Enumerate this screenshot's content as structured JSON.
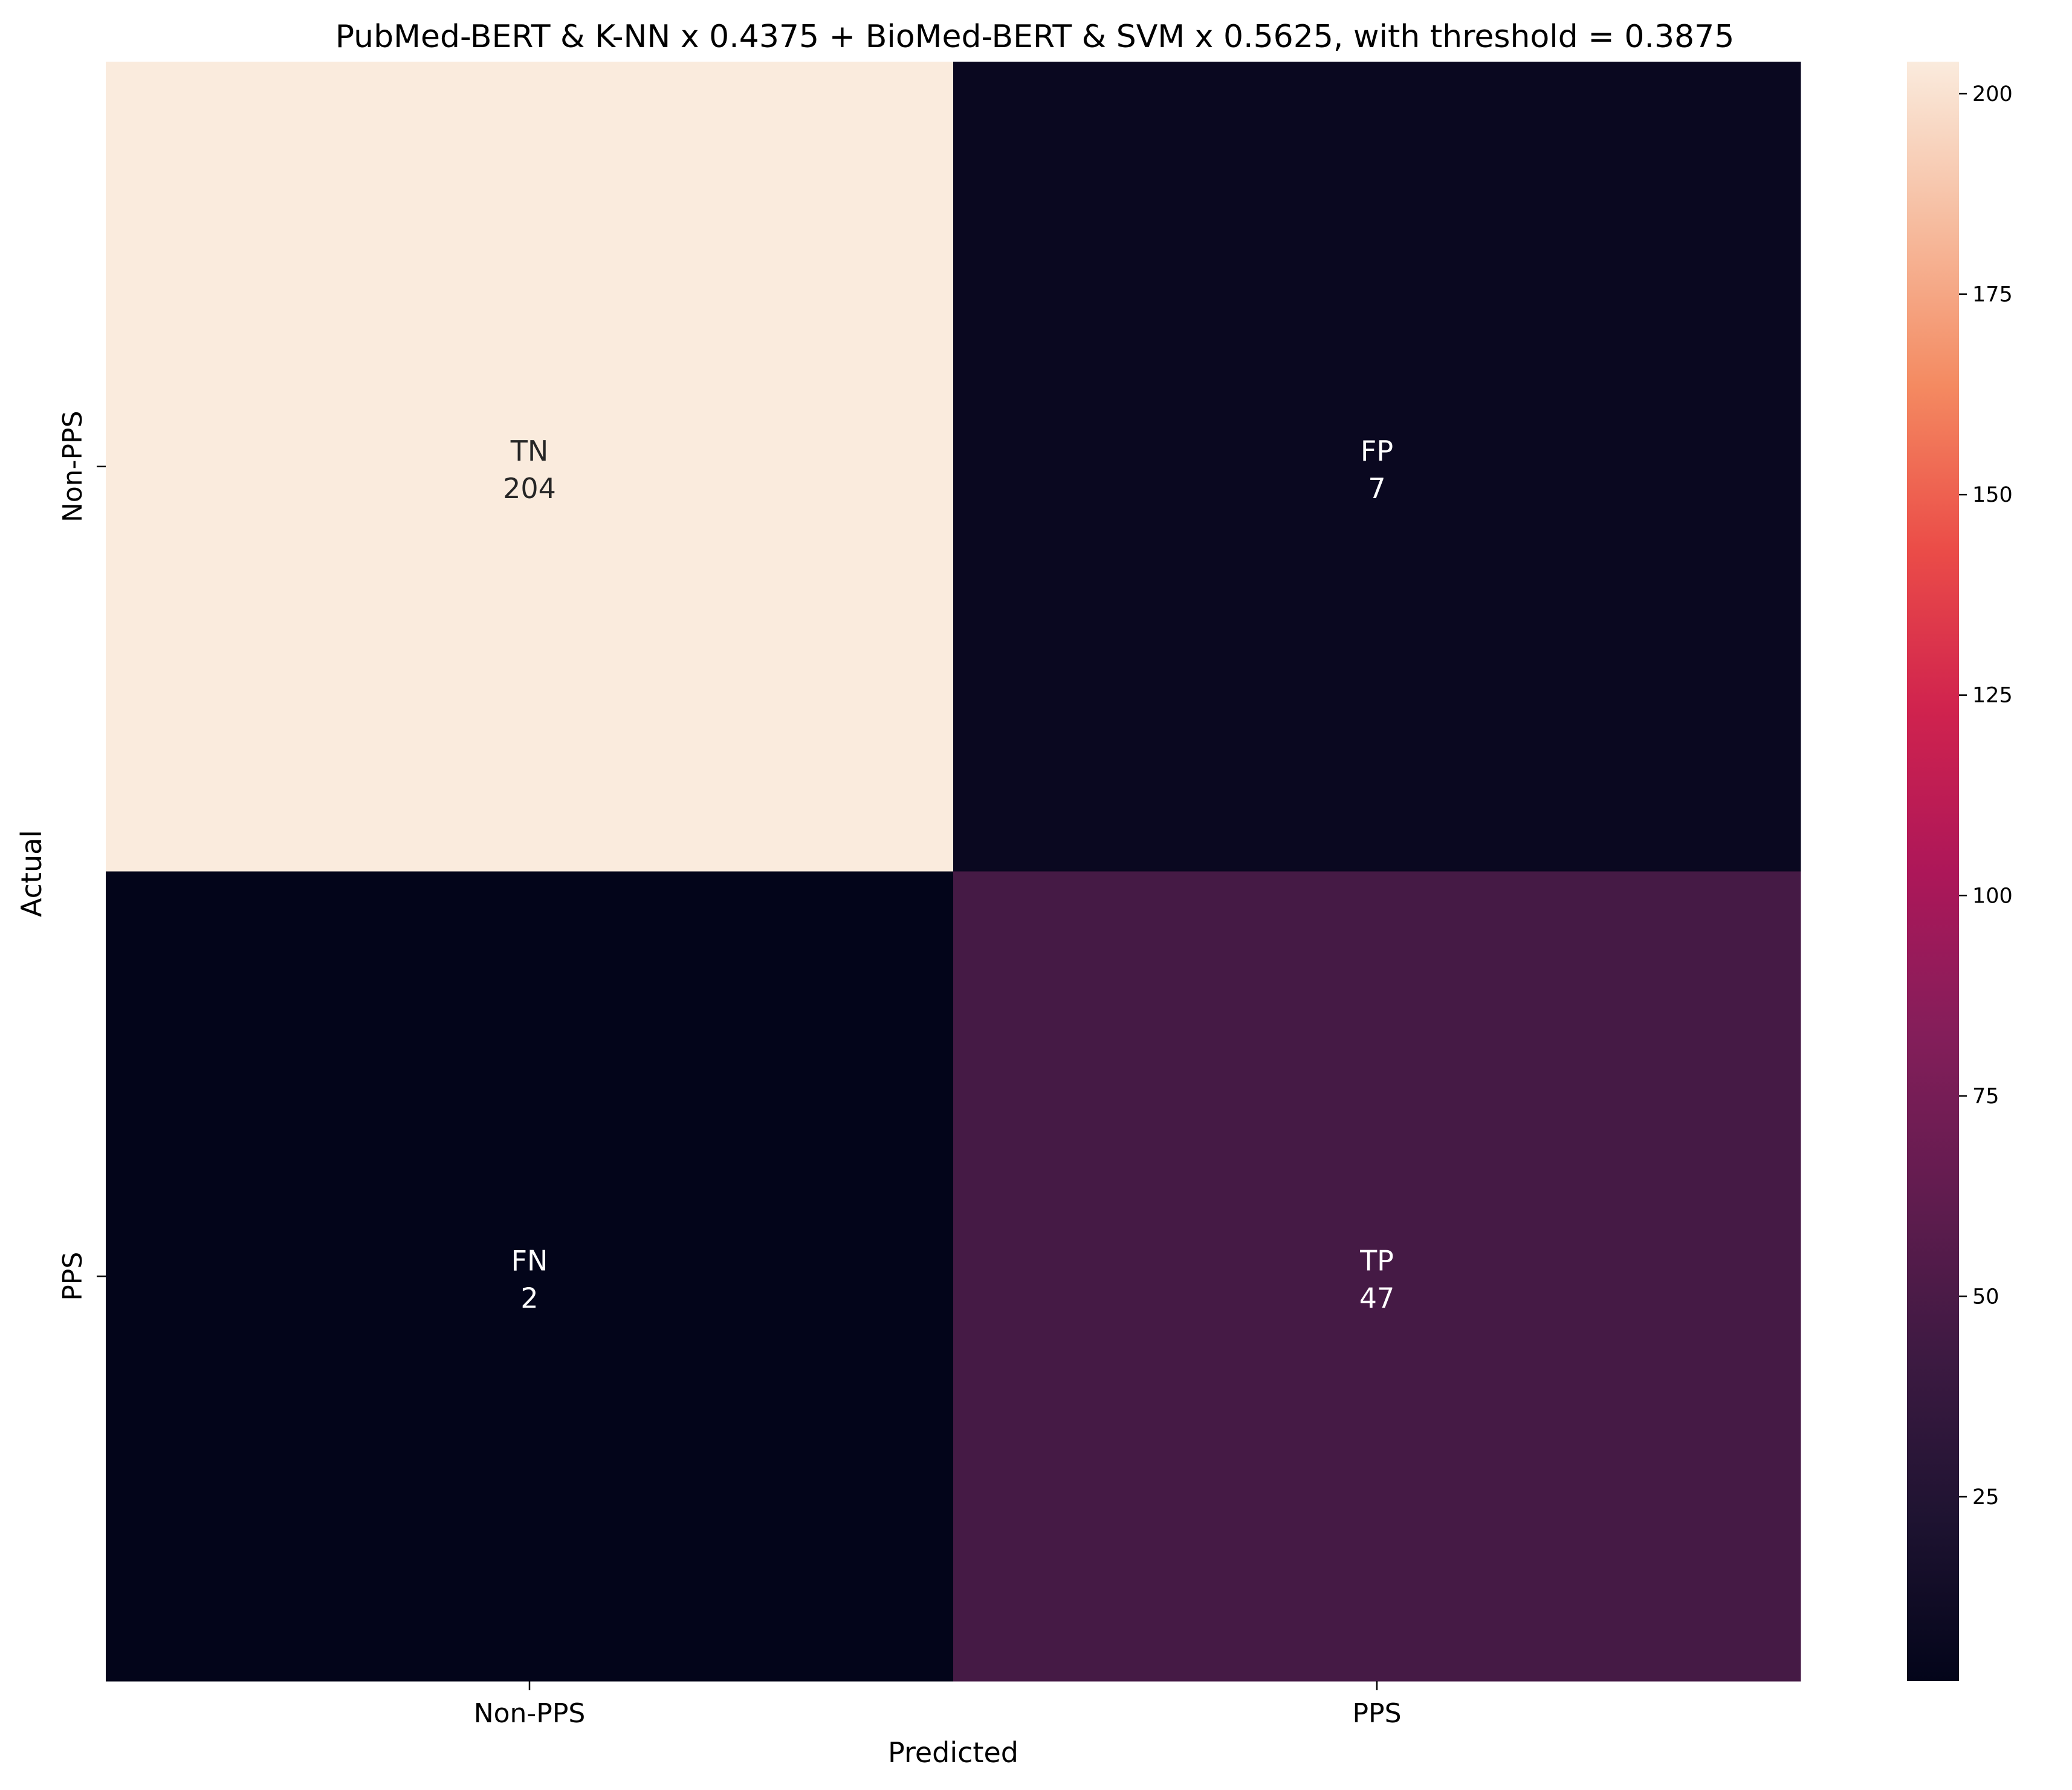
{
  "chart_data": {
    "type": "heatmap",
    "title": "PubMed-BERT & K-NN x 0.4375 + BioMed-BERT & SVM x 0.5625, with threshold = 0.3875",
    "xlabel": "Predicted",
    "ylabel": "Actual",
    "x_categories": [
      "Non-PPS",
      "PPS"
    ],
    "y_categories": [
      "Non-PPS",
      "PPS"
    ],
    "cells": [
      [
        {
          "label": "TN",
          "value": 204,
          "value_text": "204"
        },
        {
          "label": "FP",
          "value": 7,
          "value_text": "7"
        }
      ],
      [
        {
          "label": "FN",
          "value": 2,
          "value_text": "2"
        },
        {
          "label": "TP",
          "value": 47,
          "value_text": "47"
        }
      ]
    ],
    "colorbar": {
      "colormap": "rocket",
      "vmin": 2,
      "vmax": 204,
      "ticks": [
        25,
        50,
        75,
        100,
        125,
        150,
        175,
        200
      ],
      "tick_labels": [
        "25",
        "50",
        "75",
        "100",
        "125",
        "150",
        "175",
        "200"
      ]
    },
    "grid": false,
    "legend": "colorbar-right"
  }
}
